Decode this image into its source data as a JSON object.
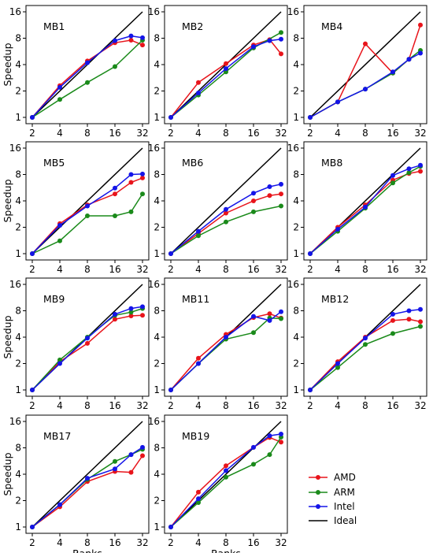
{
  "chart_data": {
    "type": "line",
    "y_axis_scale": "log2",
    "x_axis_scale": "log2",
    "xlim": [
      2,
      32
    ],
    "ylim": [
      1,
      16
    ],
    "x_ticks": [
      2,
      4,
      8,
      16,
      32
    ],
    "y_ticks": [
      1,
      2,
      4,
      8,
      16
    ],
    "x_tick_labels": [
      "2",
      "4",
      "8",
      "16",
      "32"
    ],
    "y_tick_labels": [
      "1",
      "2",
      "4",
      "8",
      "16"
    ],
    "xlabel": "Ranks",
    "ylabel": "Speedup",
    "grid": false,
    "legend_position": "bottom-right",
    "legend": [
      {
        "name": "AMD",
        "color": "#e8141b",
        "marker": "circle"
      },
      {
        "name": "ARM",
        "color": "#1a8a1a",
        "marker": "circle"
      },
      {
        "name": "Intel",
        "color": "#1414e8",
        "marker": "circle"
      },
      {
        "name": "Ideal",
        "color": "#000000",
        "marker": "none"
      }
    ],
    "ideal": {
      "x": [
        2,
        32
      ],
      "y": [
        1,
        16
      ]
    },
    "panels": [
      {
        "title": "MB1",
        "series": [
          {
            "name": "AMD",
            "x": [
              2,
              4,
              8,
              16,
              24,
              32
            ],
            "y": [
              1,
              2.3,
              4.4,
              7.1,
              7.6,
              6.7
            ]
          },
          {
            "name": "ARM",
            "x": [
              2,
              4,
              8,
              16,
              32
            ],
            "y": [
              1,
              1.6,
              2.5,
              3.8,
              7.6
            ]
          },
          {
            "name": "Intel",
            "x": [
              2,
              4,
              8,
              16,
              24,
              32
            ],
            "y": [
              1,
              2.2,
              4.2,
              7.5,
              8.5,
              8.1
            ]
          }
        ]
      },
      {
        "title": "MB2",
        "series": [
          {
            "name": "AMD",
            "x": [
              2,
              4,
              8,
              16,
              24,
              32
            ],
            "y": [
              1,
              2.5,
              4.1,
              6.7,
              7.7,
              5.3
            ]
          },
          {
            "name": "ARM",
            "x": [
              2,
              4,
              8,
              16,
              32
            ],
            "y": [
              1,
              1.8,
              3.3,
              6.2,
              9.3
            ]
          },
          {
            "name": "Intel",
            "x": [
              2,
              4,
              8,
              16,
              24,
              32
            ],
            "y": [
              1,
              1.9,
              3.6,
              6.4,
              7.5,
              7.8
            ]
          }
        ]
      },
      {
        "title": "MB4",
        "series": [
          {
            "name": "AMD",
            "x": [
              2,
              4,
              8,
              16,
              24,
              32
            ],
            "y": [
              1,
              1.5,
              6.9,
              3.2,
              4.6,
              11.3
            ]
          },
          {
            "name": "ARM",
            "x": [
              2,
              4,
              8,
              16,
              24,
              32
            ],
            "y": [
              1,
              1.5,
              2.1,
              3.2,
              4.6,
              5.8
            ]
          },
          {
            "name": "Intel",
            "x": [
              2,
              4,
              8,
              16,
              24,
              32
            ],
            "y": [
              1,
              1.5,
              2.1,
              3.3,
              4.6,
              5.4
            ]
          }
        ]
      },
      {
        "title": "MB5",
        "series": [
          {
            "name": "AMD",
            "x": [
              2,
              4,
              8,
              16,
              24,
              32
            ],
            "y": [
              1,
              2.2,
              3.6,
              4.8,
              6.5,
              7.3
            ]
          },
          {
            "name": "ARM",
            "x": [
              2,
              4,
              8,
              16,
              24,
              32
            ],
            "y": [
              1,
              1.4,
              2.7,
              2.7,
              3.0,
              4.8
            ]
          },
          {
            "name": "Intel",
            "x": [
              2,
              4,
              8,
              16,
              24,
              32
            ],
            "y": [
              1,
              2.1,
              3.5,
              5.6,
              8.0,
              8.1
            ]
          }
        ]
      },
      {
        "title": "MB6",
        "series": [
          {
            "name": "AMD",
            "x": [
              2,
              4,
              8,
              16,
              24,
              32
            ],
            "y": [
              1,
              1.7,
              2.9,
              4.0,
              4.6,
              4.8
            ]
          },
          {
            "name": "ARM",
            "x": [
              2,
              4,
              8,
              16,
              32
            ],
            "y": [
              1,
              1.6,
              2.3,
              3.0,
              3.5
            ]
          },
          {
            "name": "Intel",
            "x": [
              2,
              4,
              8,
              16,
              24,
              32
            ],
            "y": [
              1,
              1.8,
              3.2,
              4.9,
              5.8,
              6.2
            ]
          }
        ]
      },
      {
        "title": "MB8",
        "series": [
          {
            "name": "AMD",
            "x": [
              2,
              4,
              8,
              16,
              24,
              32
            ],
            "y": [
              1,
              2.0,
              3.6,
              6.9,
              8.2,
              8.7
            ]
          },
          {
            "name": "ARM",
            "x": [
              2,
              4,
              8,
              16,
              24,
              32
            ],
            "y": [
              1,
              1.8,
              3.3,
              6.4,
              8.4,
              9.9
            ]
          },
          {
            "name": "Intel",
            "x": [
              2,
              4,
              8,
              16,
              24,
              32
            ],
            "y": [
              1,
              1.9,
              3.4,
              7.8,
              9.3,
              10.2
            ]
          }
        ]
      },
      {
        "title": "MB9",
        "series": [
          {
            "name": "AMD",
            "x": [
              2,
              4,
              8,
              16,
              24,
              32
            ],
            "y": [
              1,
              2.1,
              3.4,
              6.4,
              7.0,
              7.1
            ]
          },
          {
            "name": "ARM",
            "x": [
              2,
              4,
              8,
              16,
              24,
              32
            ],
            "y": [
              1,
              2.2,
              4.0,
              7.1,
              7.7,
              8.5
            ]
          },
          {
            "name": "Intel",
            "x": [
              2,
              4,
              8,
              16,
              24,
              32
            ],
            "y": [
              1,
              2.0,
              3.9,
              7.3,
              8.5,
              8.9
            ]
          }
        ]
      },
      {
        "title": "MB11",
        "series": [
          {
            "name": "AMD",
            "x": [
              2,
              4,
              8,
              16,
              24,
              32
            ],
            "y": [
              1,
              2.3,
              4.3,
              6.7,
              7.4,
              6.6
            ]
          },
          {
            "name": "ARM",
            "x": [
              2,
              4,
              8,
              16,
              24,
              32
            ],
            "y": [
              1,
              2.0,
              3.8,
              4.5,
              6.6,
              6.5
            ]
          },
          {
            "name": "Intel",
            "x": [
              2,
              4,
              8,
              16,
              24,
              32
            ],
            "y": [
              1,
              2.0,
              4.0,
              6.9,
              6.2,
              7.8
            ]
          }
        ]
      },
      {
        "title": "MB12",
        "series": [
          {
            "name": "AMD",
            "x": [
              2,
              4,
              8,
              16,
              24,
              32
            ],
            "y": [
              1,
              2.1,
              4.0,
              6.2,
              6.4,
              6.0
            ]
          },
          {
            "name": "ARM",
            "x": [
              2,
              4,
              8,
              16,
              32
            ],
            "y": [
              1,
              1.8,
              3.3,
              4.4,
              5.3
            ]
          },
          {
            "name": "Intel",
            "x": [
              2,
              4,
              8,
              16,
              24,
              32
            ],
            "y": [
              1,
              2.0,
              3.9,
              7.3,
              8.0,
              8.3
            ]
          }
        ]
      },
      {
        "title": "MB17",
        "series": [
          {
            "name": "AMD",
            "x": [
              2,
              4,
              8,
              16,
              24,
              32
            ],
            "y": [
              1,
              1.7,
              3.3,
              4.3,
              4.2,
              6.5
            ]
          },
          {
            "name": "ARM",
            "x": [
              2,
              4,
              8,
              16,
              24,
              32
            ],
            "y": [
              1,
              1.8,
              3.5,
              5.6,
              6.7,
              7.7
            ]
          },
          {
            "name": "Intel",
            "x": [
              2,
              4,
              8,
              16,
              24,
              32
            ],
            "y": [
              1,
              1.8,
              3.6,
              4.6,
              6.7,
              8.1
            ]
          }
        ]
      },
      {
        "title": "MB19",
        "series": [
          {
            "name": "AMD",
            "x": [
              2,
              4,
              8,
              16,
              24,
              32
            ],
            "y": [
              1,
              2.5,
              5.0,
              8.1,
              10.5,
              9.3
            ]
          },
          {
            "name": "ARM",
            "x": [
              2,
              4,
              8,
              16,
              24,
              32
            ],
            "y": [
              1,
              1.9,
              3.7,
              5.2,
              6.7,
              10.6
            ]
          },
          {
            "name": "Intel",
            "x": [
              2,
              4,
              8,
              16,
              24,
              32
            ],
            "y": [
              1,
              2.1,
              4.4,
              8.1,
              11.0,
              11.5
            ]
          }
        ]
      }
    ]
  }
}
